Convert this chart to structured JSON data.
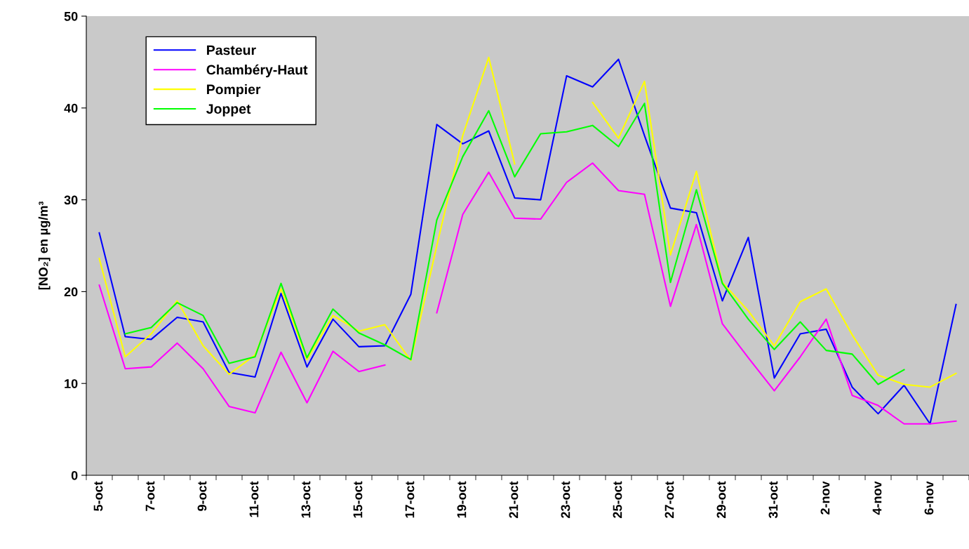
{
  "chart_data": {
    "type": "line",
    "ylabel": "[NO₂] en µg/m³",
    "categories": [
      "5-oct",
      null,
      "7-oct",
      null,
      "9-oct",
      null,
      "11-oct",
      null,
      "13-oct",
      null,
      "15-oct",
      null,
      "17-oct",
      null,
      "19-oct",
      null,
      "21-oct",
      null,
      "23-oct",
      null,
      "25-oct",
      null,
      "27-oct",
      null,
      "29-oct",
      null,
      "31-oct",
      null,
      "2-nov",
      null,
      "4-nov",
      null,
      "6-nov",
      null
    ],
    "series": [
      {
        "name": "Pasteur",
        "color": "#0000ff",
        "values": [
          26.4,
          15.1,
          14.8,
          17.2,
          16.7,
          11.2,
          10.7,
          19.8,
          11.8,
          17.0,
          14.0,
          14.1,
          19.7,
          38.2,
          36.1,
          37.5,
          30.2,
          30.0,
          43.5,
          42.3,
          45.3,
          37.0,
          29.1,
          28.6,
          19.0,
          25.9,
          10.6,
          15.4,
          15.9,
          9.6,
          6.7,
          9.8,
          5.6,
          18.6
        ]
      },
      {
        "name": "Chambéry-Haut",
        "color": "#ff00ff",
        "values": [
          20.7,
          11.6,
          11.8,
          14.4,
          11.6,
          7.5,
          6.8,
          13.4,
          7.9,
          13.5,
          11.3,
          12.0,
          null,
          17.7,
          28.4,
          33.0,
          28.0,
          27.9,
          31.9,
          34.0,
          31.0,
          30.6,
          18.4,
          27.3,
          16.5,
          12.8,
          9.2,
          12.9,
          17.0,
          8.7,
          7.6,
          5.6,
          5.6,
          5.9
        ]
      },
      {
        "name": "Pompier",
        "color": "#ffff00",
        "values": [
          23.6,
          12.9,
          15.4,
          19.0,
          14.1,
          11.0,
          13.1,
          20.3,
          12.6,
          17.4,
          15.7,
          16.4,
          12.5,
          25.0,
          37.0,
          45.5,
          33.9,
          null,
          null,
          40.6,
          36.7,
          42.9,
          24.0,
          33.1,
          21.0,
          17.9,
          14.1,
          18.9,
          20.3,
          15.3,
          10.9,
          9.9,
          9.6,
          11.1
        ]
      },
      {
        "name": "Joppet",
        "color": "#00ff00",
        "values": [
          null,
          15.4,
          16.1,
          18.8,
          17.4,
          12.2,
          12.9,
          20.9,
          12.8,
          18.1,
          15.5,
          14.2,
          12.6,
          27.8,
          34.7,
          39.7,
          32.5,
          37.2,
          37.4,
          38.1,
          35.8,
          40.5,
          21.0,
          31.1,
          20.9,
          17.0,
          13.7,
          16.7,
          13.6,
          13.2,
          9.9,
          11.5,
          null,
          null
        ]
      }
    ],
    "ylim": [
      0,
      50
    ],
    "yticks": [
      0,
      10,
      20,
      30,
      40,
      50
    ],
    "grid": false,
    "legend": "top left",
    "marker": "none",
    "line_style": "solid"
  }
}
